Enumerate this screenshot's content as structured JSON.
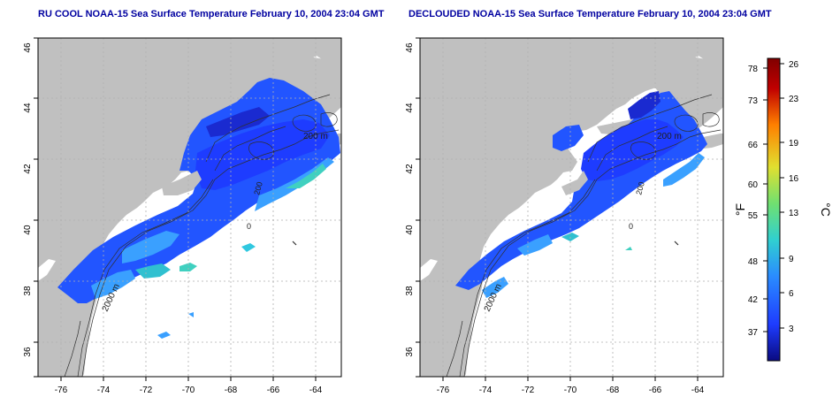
{
  "panels": [
    {
      "title": "RU COOL NOAA-15 Sea Surface Temperature February 10, 2004 23:04 GMT",
      "lat_ticks": [
        "36",
        "38",
        "40",
        "42",
        "44",
        "46"
      ],
      "lon_ticks": [
        "-76",
        "-74",
        "-72",
        "-70",
        "-68",
        "-66",
        "-64"
      ],
      "contour_labels": [
        "2000 m",
        "200 m",
        "200",
        "0"
      ]
    },
    {
      "title": "DECLOUDED NOAA-15 Sea Surface Temperature February 10, 2004 23:04 GMT",
      "lat_ticks": [
        "36",
        "38",
        "40",
        "42",
        "44",
        "46"
      ],
      "lon_ticks": [
        "-76",
        "-74",
        "-72",
        "-70",
        "-68",
        "-66",
        "-64"
      ],
      "contour_labels": [
        "2000 m",
        "200 m",
        "200",
        "0"
      ]
    }
  ],
  "colorbar": {
    "f_label": "°F",
    "c_label": "°C",
    "f_ticks": [
      "78",
      "73",
      "66",
      "60",
      "55",
      "48",
      "42",
      "37"
    ],
    "c_ticks": [
      "26",
      "23",
      "19",
      "16",
      "13",
      "9",
      "6",
      "3"
    ]
  },
  "colors": {
    "land": "#c0c0c0",
    "title": "#0000a0",
    "colorbar_stops": [
      "#0a0a80",
      "#1e3cff",
      "#2a8cff",
      "#30d0d0",
      "#70e070",
      "#e0e030",
      "#ff8000",
      "#c00000",
      "#800000"
    ]
  }
}
